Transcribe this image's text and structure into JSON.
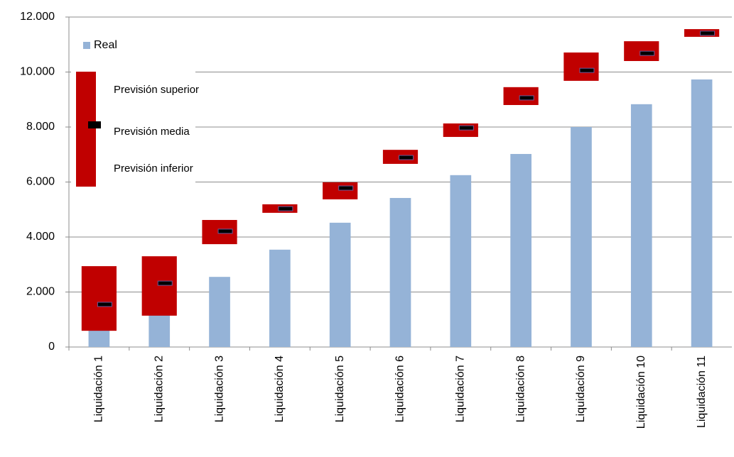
{
  "chart_data": {
    "type": "bar",
    "categories": [
      "Liquidación 1",
      "Liquidación 2",
      "Liquidación 3",
      "Liquidación 4",
      "Liquidación 5",
      "Liquidación 6",
      "Liquidación 7",
      "Liquidación 8",
      "Liquidación 9",
      "Liquidación 10",
      "Liquidación 11"
    ],
    "series": [
      {
        "name": "Real",
        "color": "#95b3d7",
        "values": [
          600,
          1150,
          2550,
          3540,
          4520,
          5420,
          6250,
          7020,
          8000,
          8830,
          9730
        ]
      },
      {
        "name": "Previsión superior",
        "color": "#c00000",
        "values": [
          2940,
          3300,
          4620,
          5190,
          5990,
          7170,
          8130,
          9450,
          10710,
          11120,
          11560
        ]
      },
      {
        "name": "Previsión media",
        "color": "#000000",
        "values": [
          1550,
          2320,
          4210,
          5030,
          5780,
          6890,
          7970,
          9060,
          10060,
          10680,
          11410
        ]
      },
      {
        "name": "Previsión inferior",
        "color": "#c00000",
        "values": [
          590,
          1140,
          3740,
          4880,
          5370,
          6660,
          7640,
          8800,
          9680,
          10400,
          11280
        ]
      }
    ],
    "ylim": [
      0,
      12000
    ],
    "yticks": [
      0,
      {
        "value": 2000,
        "label": "2.000"
      },
      {
        "value": 4000,
        "label": "4.000"
      },
      {
        "value": 6000,
        "label": "6.000"
      },
      {
        "value": 8000,
        "label": "8.000"
      },
      {
        "value": 10000,
        "label": "10.000"
      },
      {
        "value": 12000,
        "label": "12.000"
      }
    ],
    "grid": true
  }
}
